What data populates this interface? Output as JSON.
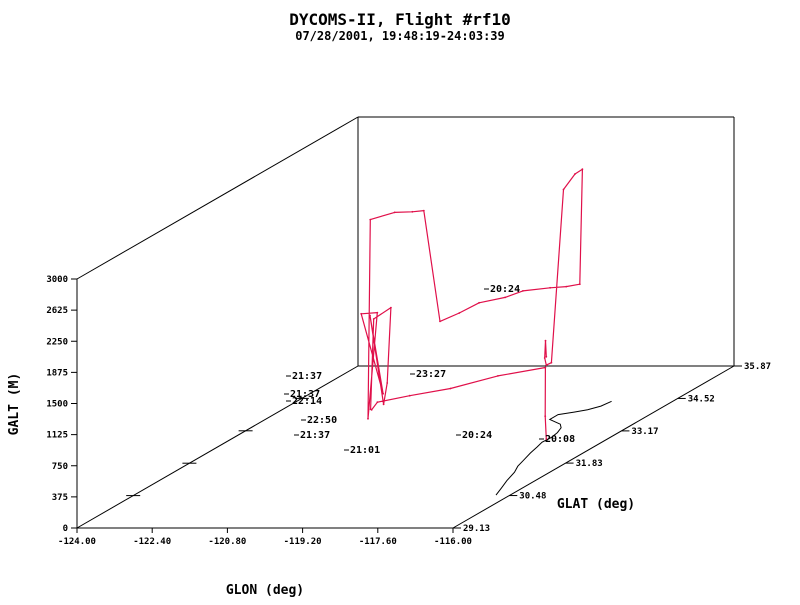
{
  "chart_data": {
    "type": "line",
    "title": "DYCOMS-II, Flight #rf10",
    "subtitle": "07/28/2001, 19:48:19-24:03:39",
    "xlabel": "GLON (deg)",
    "ylabel": "GLAT (deg)",
    "zlabel": "GALT (M)",
    "xlim": [
      -124.0,
      -116.0
    ],
    "ylim": [
      29.13,
      35.87
    ],
    "zlim": [
      0,
      3000
    ],
    "x_ticks": [
      "-124.00",
      "-122.40",
      "-120.80",
      "-119.20",
      "-117.60",
      "-116.00"
    ],
    "y_ticks": [
      "29.13",
      "30.48",
      "31.83",
      "33.17",
      "34.52",
      "35.87"
    ],
    "z_ticks": [
      "0",
      "375",
      "750",
      "1125",
      "1500",
      "1875",
      "2250",
      "2625",
      "3000"
    ],
    "colors": {
      "track": "#e0104a",
      "coast": "#000000"
    },
    "series": [
      {
        "x": [
          -117.27,
          -117.25,
          -117.2,
          -117.9,
          -118.6,
          -119.2,
          -119.8,
          -120.1,
          -120.3,
          -120.5,
          -120.4,
          -120.3,
          -120.2,
          -120.4,
          -120.3,
          -120.5,
          -120.2,
          -120.0,
          -119.95,
          -119.7,
          -119.5,
          -119.3,
          -119.0,
          -118.9,
          -118.7,
          -118.5,
          -118.3,
          -117.9,
          -117.6,
          -117.4,
          -117.3,
          -117.28,
          -117.26,
          -117.25,
          -117.27,
          -117.26,
          -117.27,
          -117.27
        ],
        "y": [
          32.8,
          32.75,
          32.7,
          32.35,
          32.0,
          31.7,
          31.6,
          31.8,
          32.0,
          32.3,
          32.6,
          32.4,
          32.2,
          32.1,
          32.3,
          32.0,
          32.05,
          31.6,
          31.6,
          31.9,
          32.1,
          32.15,
          32.2,
          32.55,
          32.8,
          33.2,
          33.4,
          33.6,
          33.65,
          33.75,
          33.7,
          33.5,
          33.2,
          32.9,
          32.8,
          32.75,
          32.78,
          32.8
        ],
        "z": [
          10,
          300,
          900,
          900,
          850,
          850,
          800,
          650,
          600,
          1600,
          1650,
          800,
          600,
          1700,
          700,
          1750,
          1750,
          600,
          3000,
          3000,
          2950,
          2950,
          1600,
          1600,
          1650,
          1600,
          1620,
          1600,
          1600,
          1600,
          3000,
          3000,
          2900,
          900,
          900,
          1000,
          1200,
          1000
        ]
      }
    ],
    "annotations": [
      {
        "text": "20:24"
      },
      {
        "text": "23:27"
      },
      {
        "text": "21:37"
      },
      {
        "text": "21:37"
      },
      {
        "text": "22:14"
      },
      {
        "text": "22:50"
      },
      {
        "text": "21:37"
      },
      {
        "text": "21:01"
      },
      {
        "text": "20:24"
      },
      {
        "text": "20:08"
      }
    ],
    "grid": false,
    "legend": "none"
  }
}
